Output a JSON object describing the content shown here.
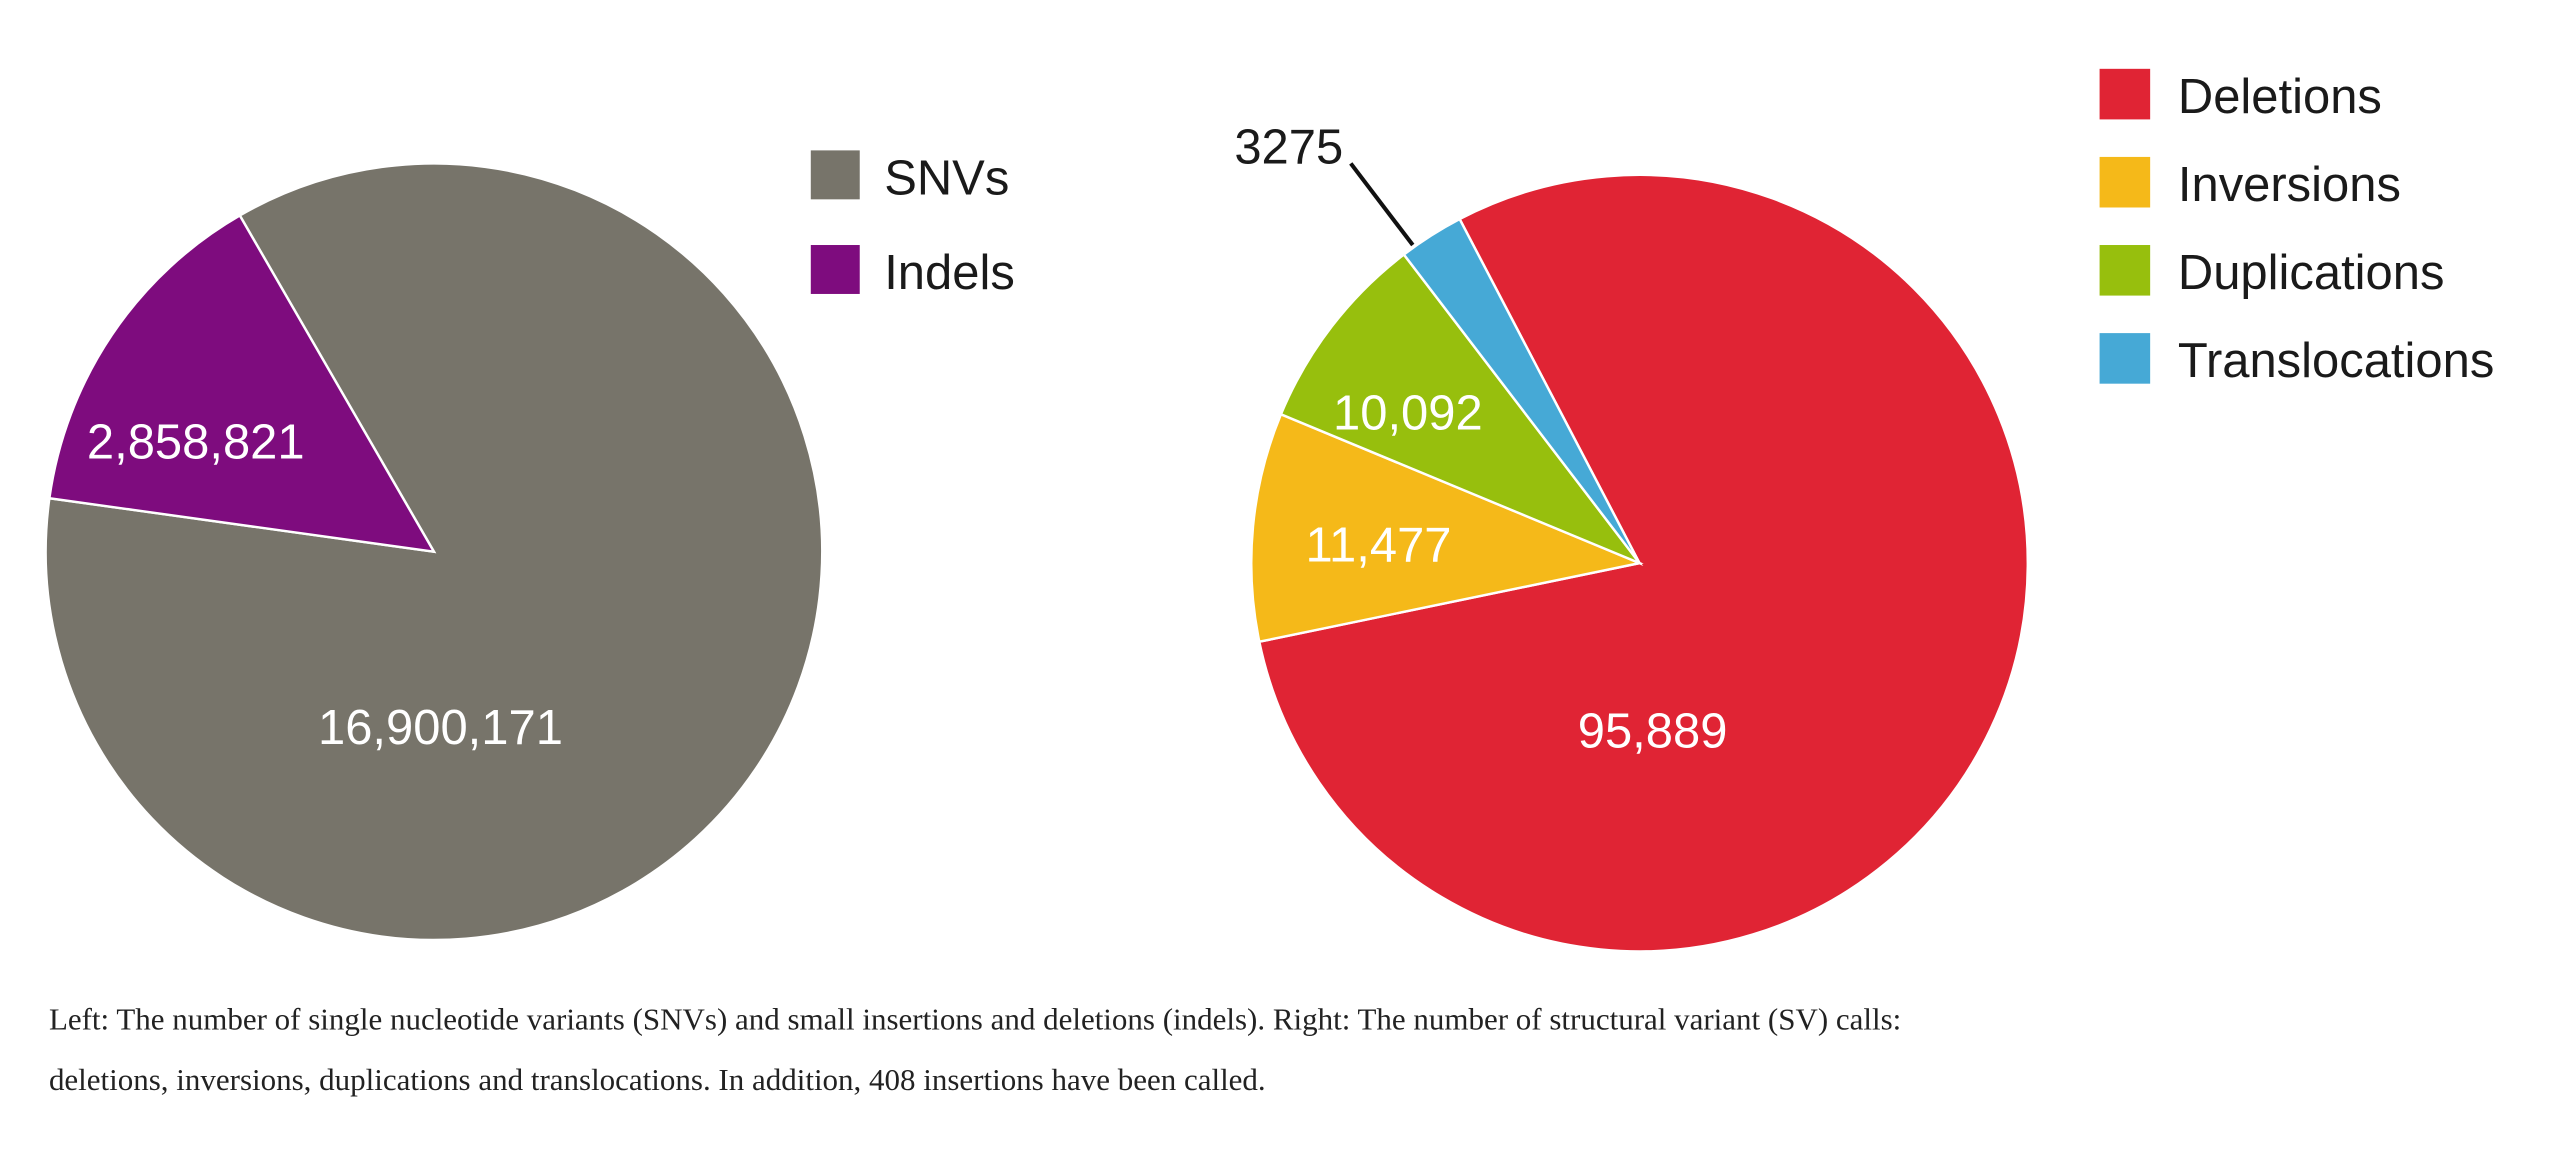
{
  "chart_data": [
    {
      "type": "pie",
      "title": "",
      "categories": [
        "SNVs",
        "Indels"
      ],
      "values": [
        16900171,
        2858821
      ],
      "data_labels": [
        "16,900,171",
        "2,858,821"
      ],
      "colors": [
        "#77746a",
        "#7e0c7e"
      ],
      "legend": [
        "SNVs",
        "Indels"
      ],
      "legend_position": "right"
    },
    {
      "type": "pie",
      "title": "",
      "categories": [
        "Deletions",
        "Inversions",
        "Duplications",
        "Translocations"
      ],
      "values": [
        95889,
        11477,
        10092,
        3275
      ],
      "data_labels": [
        "95,889",
        "11,477",
        "10,092",
        "3275"
      ],
      "colors": [
        "#e02434",
        "#f5b919",
        "#97bf0d",
        "#46a9d6"
      ],
      "legend": [
        "Deletions",
        "Inversions",
        "Duplications",
        "Translocations"
      ],
      "legend_position": "top-right"
    }
  ],
  "caption": {
    "line1": "Left: The number of single nucleotide variants (SNVs) and small insertions and deletions (indels). Right: The number of structural variant (SV) calls:",
    "line2": "deletions, inversions, duplications and translocations. In addition, 408 insertions have been called."
  }
}
